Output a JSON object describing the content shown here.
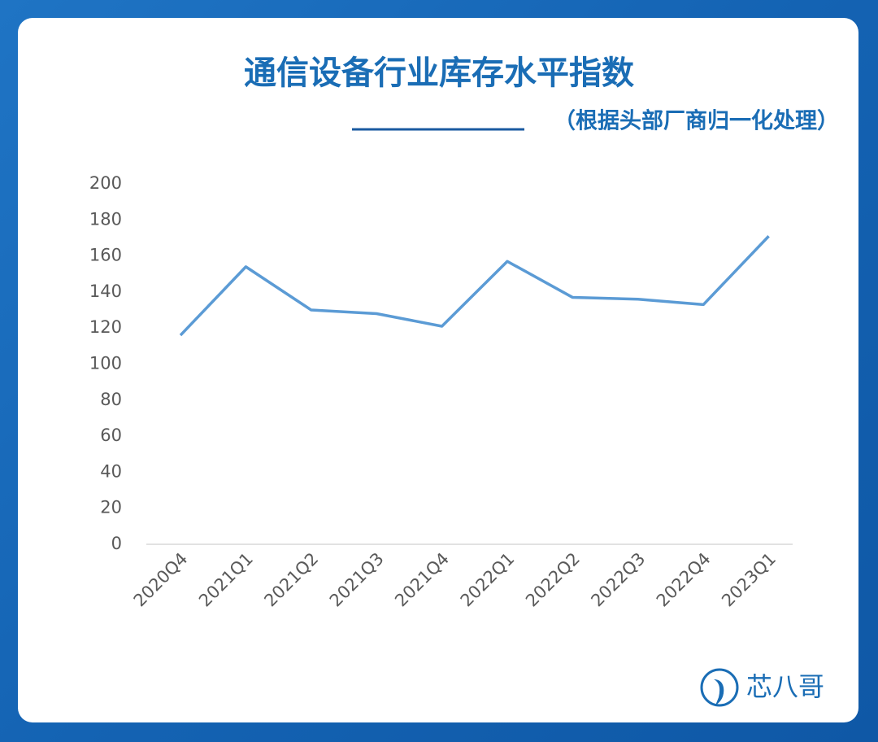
{
  "chart_data": {
    "type": "line",
    "title": "通信设备行业库存水平指数",
    "subtitle": "（根据头部厂商归一化处理）",
    "categories": [
      "2020Q4",
      "2021Q1",
      "2021Q2",
      "2021Q3",
      "2021Q4",
      "2022Q1",
      "2022Q2",
      "2022Q3",
      "2022Q4",
      "2023Q1"
    ],
    "values": [
      116,
      154,
      130,
      128,
      121,
      157,
      137,
      136,
      133,
      171
    ],
    "color": "#5b9bd5",
    "ylim": [
      0,
      200
    ],
    "yticks": [
      0,
      20,
      40,
      60,
      80,
      100,
      120,
      140,
      160,
      180,
      200
    ],
    "grid": false
  },
  "brand": "芯八哥"
}
